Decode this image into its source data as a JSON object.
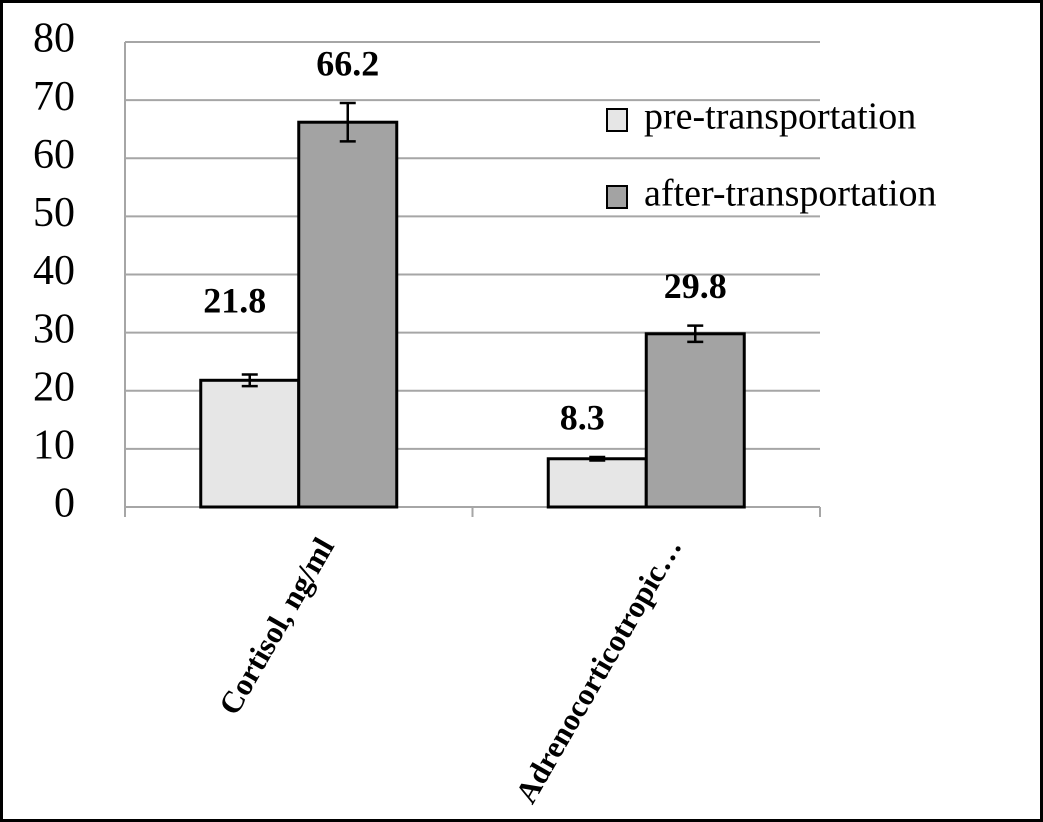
{
  "chart_data": {
    "type": "bar",
    "categories": [
      "Cortisol, ng/ml",
      "Adrenocorticotropic…"
    ],
    "series": [
      {
        "name": "pre-transportation",
        "color": "#e6e6e6",
        "values": [
          21.8,
          8.3
        ],
        "errors": [
          1,
          0.3
        ]
      },
      {
        "name": "after-transportation",
        "color": "#a3a3a3",
        "values": [
          66.2,
          29.8
        ],
        "errors": [
          3.3,
          1.4
        ]
      }
    ],
    "ylim": [
      0,
      80
    ],
    "yticks": [
      0,
      10,
      20,
      30,
      40,
      50,
      60,
      70,
      80
    ],
    "grid": true,
    "legend": "top-right"
  }
}
